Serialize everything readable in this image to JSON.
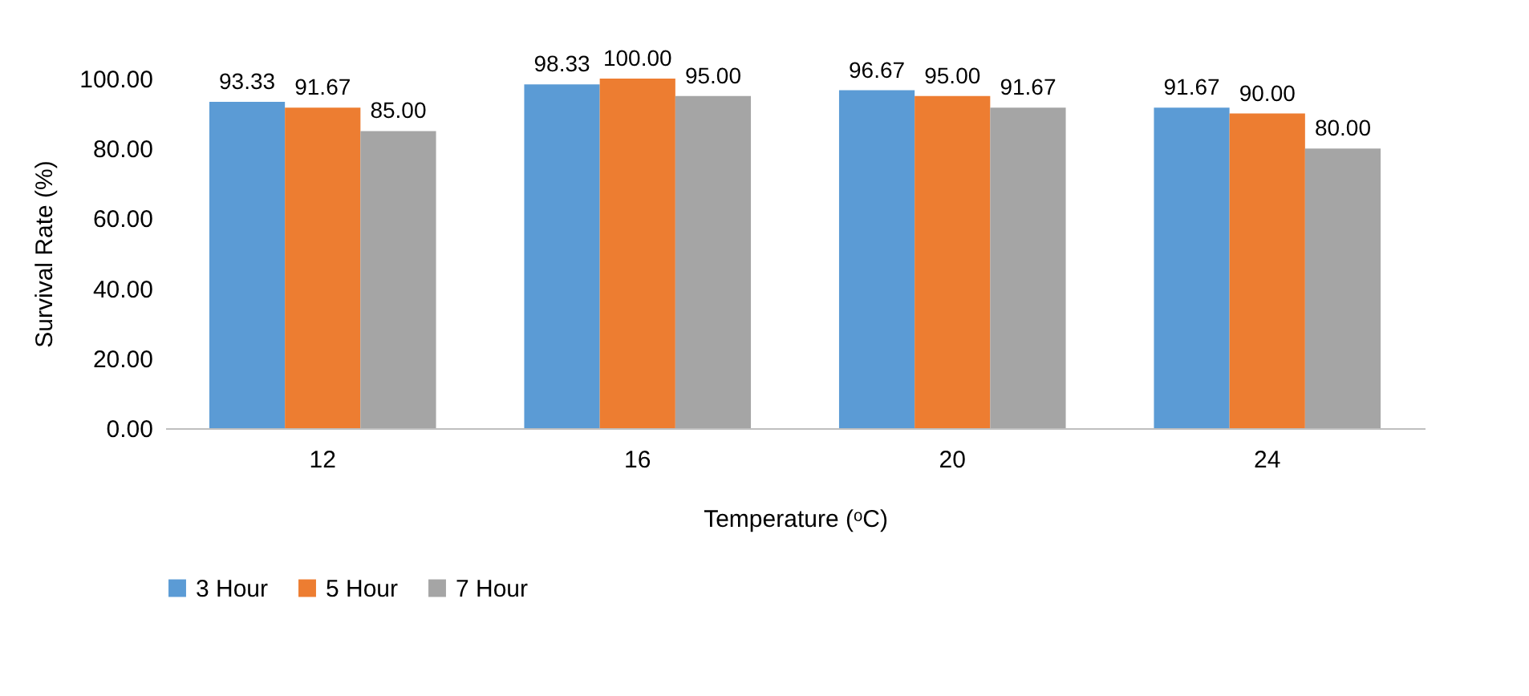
{
  "chart_data": {
    "type": "bar",
    "xlabel": "Temperature (ᵒC)",
    "ylabel": "Survival Rate (%)",
    "categories": [
      "12",
      "16",
      "20",
      "24"
    ],
    "series": [
      {
        "name": "3 Hour",
        "color": "#5b9bd5",
        "values": [
          93.33,
          98.33,
          96.67,
          91.67
        ],
        "value_labels": [
          "93.33",
          "98.33",
          "96.67",
          "91.67"
        ]
      },
      {
        "name": "5 Hour",
        "color": "#ed7d31",
        "values": [
          91.67,
          100.0,
          95.0,
          90.0
        ],
        "value_labels": [
          "91.67",
          "100.00",
          "95.00",
          "90.00"
        ]
      },
      {
        "name": "7 Hour",
        "color": "#a5a5a5",
        "values": [
          85.0,
          95.0,
          91.67,
          80.0
        ],
        "value_labels": [
          "85.00",
          "95.00",
          "91.67",
          "80.00"
        ]
      }
    ],
    "ylim": [
      0,
      100
    ],
    "yticks": [
      {
        "value": 0,
        "label": "0.00"
      },
      {
        "value": 20,
        "label": "20.00"
      },
      {
        "value": 40,
        "label": "40.00"
      },
      {
        "value": 60,
        "label": "60.00"
      },
      {
        "value": 80,
        "label": "80.00"
      },
      {
        "value": 100,
        "label": "100.00"
      }
    ],
    "grid": false,
    "legend": "bottom"
  }
}
